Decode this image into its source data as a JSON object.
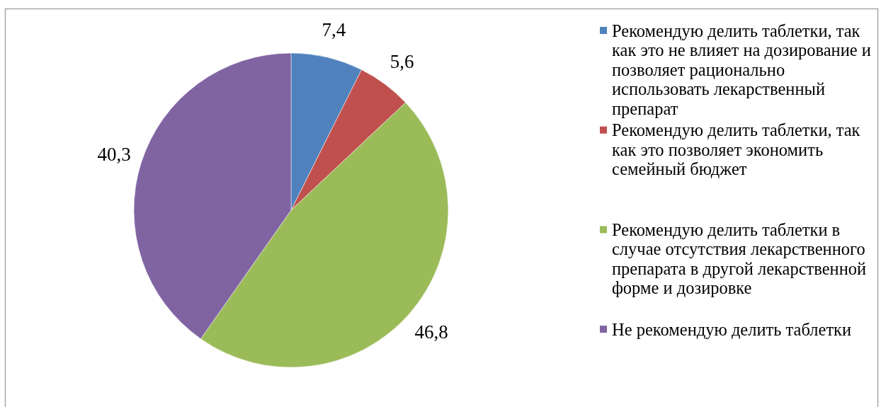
{
  "chart_data": {
    "type": "pie",
    "categories": [
      "Рекомендую делить таблетки, так как это не влияет на дозирование и позволяет рационально использовать лекарственный препарат",
      "Рекомендую делить таблетки, так как это позволяет экономить семейный бюджет",
      "Рекомендую делить таблетки в случае отсутствия лекарственного препарата в другой лекарственной форме и дозировке",
      "Не рекомендую делить таблетки"
    ],
    "values": [
      7.4,
      5.6,
      46.8,
      40.3
    ],
    "colors": [
      "#4f81bd",
      "#c0504d",
      "#9bbb59",
      "#8064a2"
    ],
    "value_labels": [
      "7,4",
      "5,6",
      "46,8",
      "40,3"
    ],
    "legend": "right"
  }
}
